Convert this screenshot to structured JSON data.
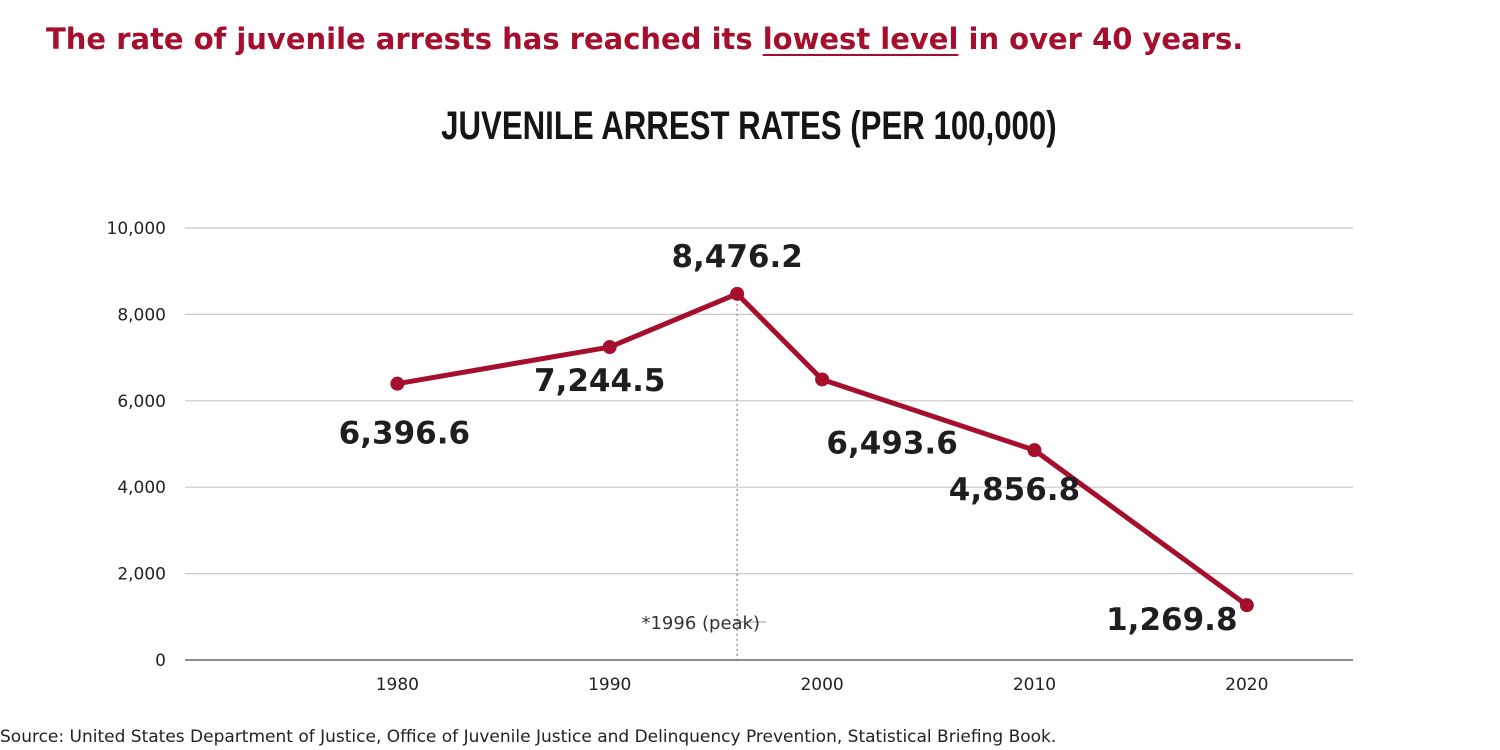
{
  "headline": {
    "before": "The rate of juvenile arrests has reached its ",
    "underlined": "lowest level",
    "after": " in over 40 years."
  },
  "source": "Source: United States Department of Justice, Office of Juvenile Justice and Delinquency Prevention, Statistical Briefing Book.",
  "colors": {
    "accent": "#a50f2d",
    "grid": "#c8c8c8",
    "text": "#222222"
  },
  "chart_data": {
    "type": "line",
    "title": "JUVENILE ARREST RATES (PER 100,000)",
    "xlabel": "",
    "ylabel": "",
    "xlim": [
      1970,
      2025
    ],
    "ylim": [
      0,
      10000
    ],
    "grid": true,
    "y_ticks": [
      0,
      2000,
      4000,
      6000,
      8000,
      10000
    ],
    "y_tick_labels": [
      "0",
      "2,000",
      "4,000",
      "6,000",
      "8,000",
      "10,000"
    ],
    "x_ticks": [
      1980,
      1990,
      2000,
      2010,
      2020
    ],
    "x_tick_labels": [
      "1980",
      "1990",
      "2000",
      "2010",
      "2020"
    ],
    "series": [
      {
        "color": "#a50f2d",
        "x": [
          1980,
          1990,
          1996,
          2000,
          2010,
          2020
        ],
        "y": [
          6396.6,
          7244.5,
          8476.2,
          6493.6,
          4856.8,
          1269.8
        ],
        "labels": [
          "6,396.6",
          "7,244.5",
          "8,476.2",
          "6,493.6",
          "4,856.8",
          "1,269.8"
        ]
      }
    ],
    "annotations": [
      {
        "x": 1996,
        "text": "*1996 (peak)",
        "style": "dotted-vertical-line"
      }
    ]
  }
}
